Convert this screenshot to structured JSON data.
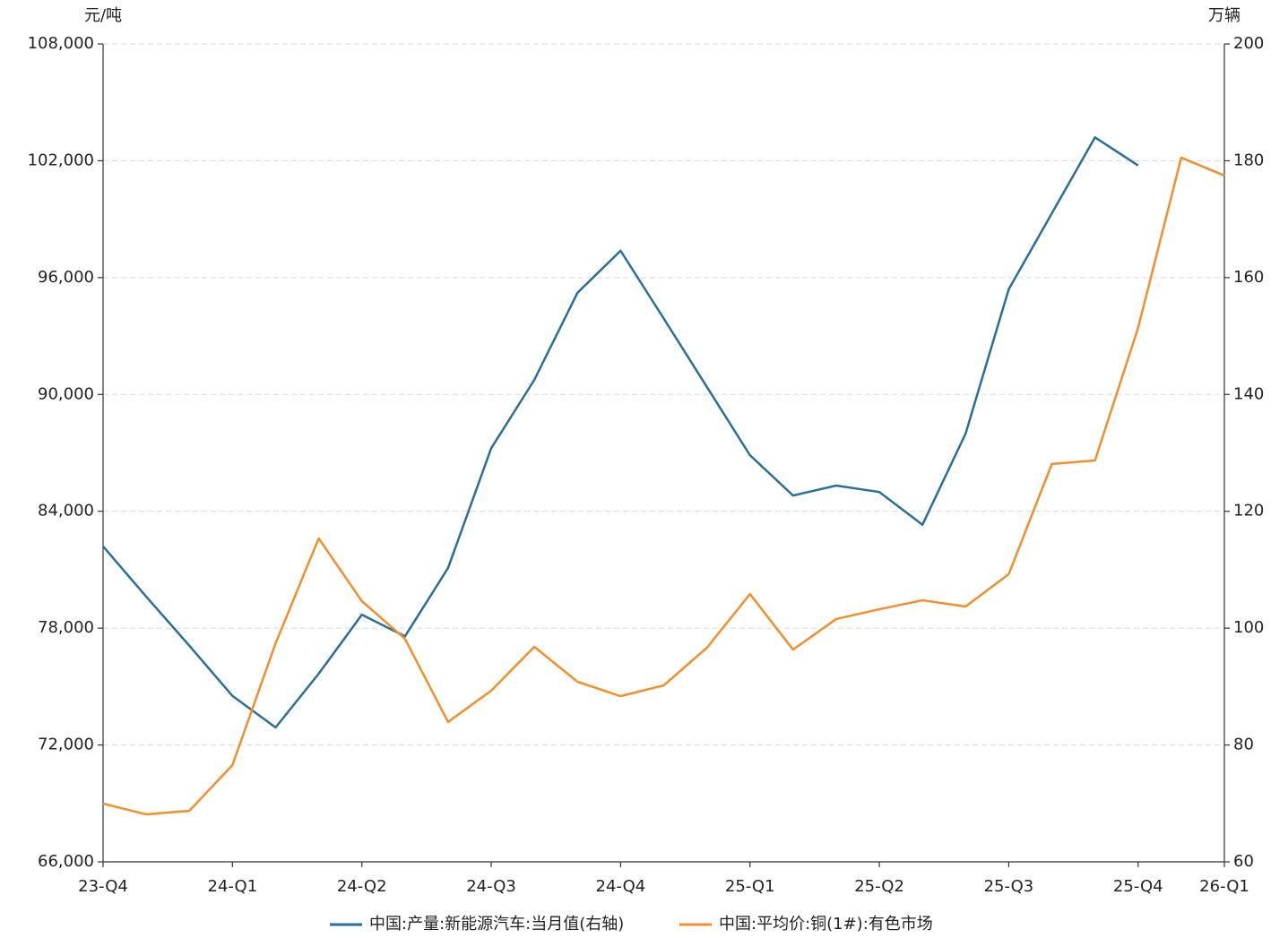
{
  "chart_data": {
    "type": "line",
    "y_unit": "元/吨",
    "y2_unit": "万辆",
    "categories": [
      "23-Q4",
      null,
      null,
      "24-Q1",
      null,
      null,
      "24-Q2",
      null,
      null,
      "24-Q3",
      null,
      null,
      "24-Q4",
      null,
      null,
      "25-Q1",
      null,
      null,
      "25-Q2",
      null,
      null,
      "25-Q3",
      null,
      null,
      "25-Q4",
      null,
      "26-Q1"
    ],
    "series": [
      {
        "name": "中国:产量:新能源汽车:当月值(右轴)",
        "color": "#2a6f97",
        "axis": "y2",
        "values": [
          114,
          105.4,
          97,
          88.4,
          83,
          92.2,
          102.3,
          98.6,
          110.3,
          130.8,
          142.5,
          157.4,
          164.6,
          153,
          141.3,
          129.6,
          122.7,
          124.4,
          123.3,
          117.7,
          133.3,
          158,
          171,
          184,
          179.2,
          null,
          null
        ]
      },
      {
        "name": "中国:平均价:铜(1#):有色市场",
        "color": "#f28e2b",
        "values": [
          68990,
          68440,
          68620,
          70970,
          77220,
          82610,
          79390,
          77450,
          73180,
          74790,
          77040,
          75250,
          74510,
          75060,
          76990,
          79750,
          76900,
          78470,
          78970,
          79430,
          79110,
          80770,
          86430,
          86610,
          93420,
          102160,
          101240
        ]
      }
    ],
    "ylim": [
      66000,
      108000
    ],
    "yticks": [
      {
        "value": 66000,
        "label": "66,000"
      },
      {
        "value": 72000,
        "label": "72,000"
      },
      {
        "value": 78000,
        "label": "78,000"
      },
      {
        "value": 84000,
        "label": "84,000"
      },
      {
        "value": 90000,
        "label": "90,000"
      },
      {
        "value": 96000,
        "label": "96,000"
      },
      {
        "value": 102000,
        "label": "102,000"
      },
      {
        "value": 108000,
        "label": "108,000"
      }
    ],
    "y2lim": [
      60,
      200
    ],
    "y2ticks": [
      60,
      80,
      100,
      120,
      140,
      160,
      180,
      200
    ],
    "grid": true
  }
}
